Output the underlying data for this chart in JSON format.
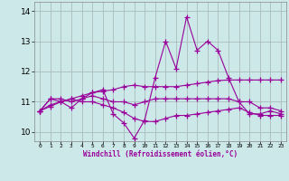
{
  "xlabel": "Windchill (Refroidissement éolien,°C)",
  "x_hours": [
    0,
    1,
    2,
    3,
    4,
    5,
    6,
    7,
    8,
    9,
    10,
    11,
    12,
    13,
    14,
    15,
    16,
    17,
    18,
    19,
    20,
    21,
    22,
    23
  ],
  "series": [
    [
      10.7,
      11.1,
      11.0,
      10.8,
      11.1,
      11.3,
      11.4,
      10.6,
      10.3,
      9.8,
      10.4,
      11.8,
      13.0,
      12.1,
      13.8,
      12.7,
      13.0,
      12.7,
      11.8,
      11.0,
      10.6,
      10.6,
      10.7,
      10.6
    ],
    [
      10.7,
      11.1,
      11.1,
      11.0,
      11.1,
      11.2,
      11.1,
      11.0,
      11.0,
      10.9,
      11.0,
      11.1,
      11.1,
      11.1,
      11.1,
      11.1,
      11.1,
      11.1,
      11.1,
      11.0,
      11.0,
      10.8,
      10.8,
      10.7
    ],
    [
      10.7,
      10.85,
      11.0,
      11.1,
      11.2,
      11.3,
      11.35,
      11.4,
      11.5,
      11.55,
      11.5,
      11.5,
      11.5,
      11.5,
      11.55,
      11.6,
      11.65,
      11.7,
      11.72,
      11.72,
      11.72,
      11.72,
      11.72,
      11.72
    ],
    [
      10.7,
      10.9,
      11.0,
      11.1,
      11.0,
      11.0,
      10.9,
      10.8,
      10.65,
      10.45,
      10.35,
      10.35,
      10.45,
      10.55,
      10.55,
      10.6,
      10.65,
      10.7,
      10.75,
      10.8,
      10.65,
      10.55,
      10.55,
      10.55
    ]
  ],
  "line_color": "#990099",
  "bg_color": "#cce8e8",
  "grid_color": "#aabcbc",
  "ylim": [
    9.7,
    14.3
  ],
  "yticks": [
    10,
    11,
    12,
    13,
    14
  ],
  "marker": "+",
  "markersize": 4,
  "linewidth": 0.8
}
